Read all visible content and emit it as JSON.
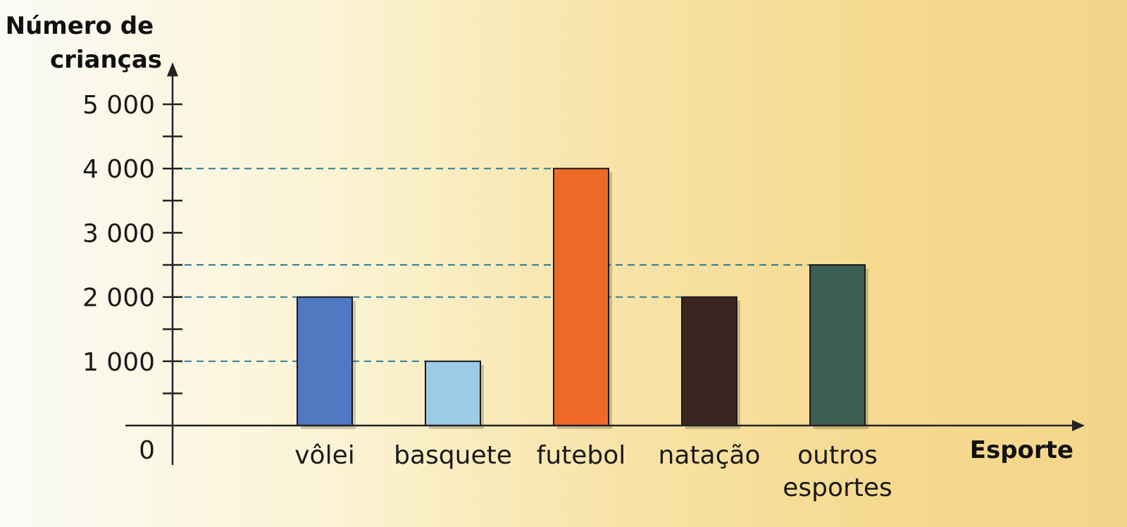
{
  "chart_data": {
    "type": "bar",
    "ylabel_lines": [
      "Número de",
      "crianças"
    ],
    "xlabel": "Esporte",
    "categories": [
      {
        "lines": [
          "vôlei"
        ]
      },
      {
        "lines": [
          "basquete"
        ]
      },
      {
        "lines": [
          "futebol"
        ]
      },
      {
        "lines": [
          "natação"
        ]
      },
      {
        "lines": [
          "outros",
          "esportes"
        ]
      }
    ],
    "values": [
      2000,
      1000,
      4000,
      2000,
      2500
    ],
    "colors": [
      "#5079c2",
      "#9ccbe8",
      "#ef6a28",
      "#3b2622",
      "#3a5d54"
    ],
    "ylim": [
      0,
      5500
    ],
    "major_ticks": [
      {
        "value": 0,
        "label": "0"
      },
      {
        "value": 1000,
        "label": "1 000"
      },
      {
        "value": 2000,
        "label": "2 000"
      },
      {
        "value": 3000,
        "label": "3 000"
      },
      {
        "value": 4000,
        "label": "4 000"
      },
      {
        "value": 5000,
        "label": "5 000"
      }
    ],
    "minor_ticks": [
      500,
      1500,
      2500,
      3500,
      4500
    ],
    "guide_lines": [
      1000,
      2000,
      2500,
      4000
    ],
    "grid": false,
    "legend": "none"
  }
}
